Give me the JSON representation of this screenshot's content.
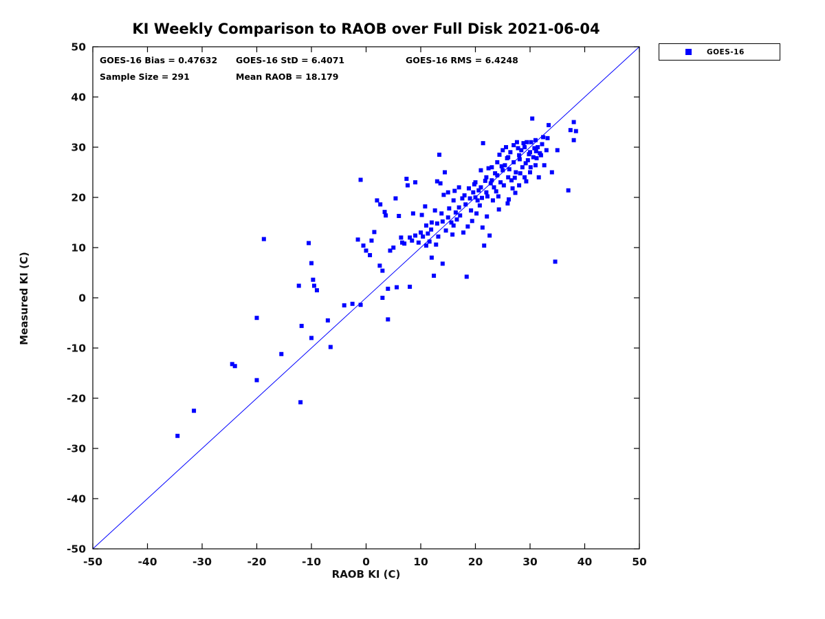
{
  "title": "KI Weekly Comparison to RAOB over Full Disk 2021-06-04",
  "legend": {
    "label": "GOES-16",
    "marker_color": "#0000ff"
  },
  "annotations": {
    "bias": "GOES-16 Bias = 0.47632",
    "std": "GOES-16 StD = 6.4071",
    "rms": "GOES-16 RMS = 6.4248",
    "sample": "Sample Size = 291",
    "mean_raob": "Mean RAOB = 18.179"
  },
  "chart_data": {
    "type": "scatter",
    "title": "KI Weekly Comparison to RAOB over Full Disk 2021-06-04",
    "xlabel": "RAOB KI (C)",
    "ylabel": "Measured KI (C)",
    "xlim": [
      -50,
      50
    ],
    "ylim": [
      -50,
      50
    ],
    "xticks": [
      -50,
      -40,
      -30,
      -20,
      -10,
      0,
      10,
      20,
      30,
      40,
      50
    ],
    "yticks": [
      -50,
      -40,
      -30,
      -20,
      -10,
      0,
      10,
      20,
      30,
      40,
      50
    ],
    "grid": false,
    "legend_position": "outside-top-right",
    "identity_line": {
      "from": [
        -50,
        -50
      ],
      "to": [
        50,
        50
      ],
      "color": "#0000ff"
    },
    "stats": {
      "bias": 0.47632,
      "std": 6.4071,
      "rms": 6.4248,
      "sample_size": 291,
      "mean_raob": 18.179
    },
    "series": [
      {
        "name": "GOES-16",
        "marker": "square",
        "color": "#0000ff",
        "points": [
          [
            -34.5,
            -27.5
          ],
          [
            -31.5,
            -22.5
          ],
          [
            -24.5,
            -13.2
          ],
          [
            -24,
            -13.6
          ],
          [
            -20,
            -16.4
          ],
          [
            -20,
            -4
          ],
          [
            -18.7,
            11.7
          ],
          [
            -15.5,
            -11.2
          ],
          [
            -12.3,
            2.4
          ],
          [
            -12,
            -20.8
          ],
          [
            -11.8,
            -5.6
          ],
          [
            -10.5,
            10.9
          ],
          [
            -10,
            6.9
          ],
          [
            -9.7,
            3.6
          ],
          [
            -9.5,
            2.4
          ],
          [
            -9,
            1.5
          ],
          [
            -10,
            -8
          ],
          [
            -7,
            -4.5
          ],
          [
            -6.5,
            -9.8
          ],
          [
            -4,
            -1.5
          ],
          [
            -2.5,
            -1.2
          ],
          [
            -1,
            -1.4
          ],
          [
            -1.5,
            11.6
          ],
          [
            -1,
            23.5
          ],
          [
            -0.5,
            10.4
          ],
          [
            0,
            9.4
          ],
          [
            0.7,
            8.5
          ],
          [
            1,
            11.4
          ],
          [
            1.5,
            13.1
          ],
          [
            2,
            19.4
          ],
          [
            2.6,
            18.6
          ],
          [
            2.5,
            6.4
          ],
          [
            3,
            5.4
          ],
          [
            3,
            0
          ],
          [
            3.4,
            17.1
          ],
          [
            3.6,
            16.4
          ],
          [
            4,
            -4.3
          ],
          [
            4,
            1.8
          ],
          [
            4.4,
            9.4
          ],
          [
            5,
            10
          ],
          [
            5.4,
            19.8
          ],
          [
            5.6,
            2.1
          ],
          [
            6,
            16.3
          ],
          [
            6.4,
            12
          ],
          [
            6.6,
            11
          ],
          [
            7,
            10.8
          ],
          [
            7.4,
            23.7
          ],
          [
            7.6,
            22.4
          ],
          [
            8,
            2.2
          ],
          [
            8,
            12
          ],
          [
            8.4,
            11.4
          ],
          [
            8.6,
            16.8
          ],
          [
            9,
            23
          ],
          [
            9,
            12.4
          ],
          [
            9.6,
            11
          ],
          [
            10,
            13
          ],
          [
            10.4,
            12.2
          ],
          [
            11,
            10.4
          ],
          [
            11,
            14.4
          ],
          [
            11.6,
            11.2
          ],
          [
            12,
            15
          ],
          [
            12,
            8
          ],
          [
            12.4,
            4.4
          ],
          [
            13,
            23.2
          ],
          [
            13,
            14.8
          ],
          [
            13.4,
            28.5
          ],
          [
            13.6,
            22.8
          ],
          [
            14,
            15.2
          ],
          [
            14,
            6.8
          ],
          [
            14.4,
            25
          ],
          [
            15,
            21
          ],
          [
            15,
            16
          ],
          [
            15.6,
            15
          ],
          [
            16,
            19.4
          ],
          [
            16,
            14.4
          ],
          [
            16.4,
            17
          ],
          [
            17,
            18
          ],
          [
            17,
            22
          ],
          [
            17.6,
            19.8
          ],
          [
            18,
            20.4
          ],
          [
            18.4,
            4.2
          ],
          [
            18.6,
            14.2
          ],
          [
            19,
            19.8
          ],
          [
            19.6,
            21
          ],
          [
            20,
            20
          ],
          [
            20,
            23
          ],
          [
            20.4,
            19.4
          ],
          [
            21,
            25.4
          ],
          [
            21,
            22
          ],
          [
            21.4,
            30.8
          ],
          [
            21.6,
            10.4
          ],
          [
            22,
            24
          ],
          [
            22,
            21
          ],
          [
            22.4,
            25.8
          ],
          [
            22.6,
            12.4
          ],
          [
            23,
            23.4
          ],
          [
            23,
            26
          ],
          [
            23.4,
            22
          ],
          [
            24,
            27
          ],
          [
            24,
            24.4
          ],
          [
            24.4,
            28.5
          ],
          [
            24.6,
            23
          ],
          [
            25,
            29.4
          ],
          [
            25,
            25.4
          ],
          [
            25.4,
            26.4
          ],
          [
            25.6,
            30
          ],
          [
            26,
            24
          ],
          [
            26,
            28
          ],
          [
            26.4,
            29
          ],
          [
            26.6,
            23.4
          ],
          [
            27,
            30.4
          ],
          [
            27,
            27
          ],
          [
            27.4,
            25
          ],
          [
            27.6,
            31
          ],
          [
            28,
            28.4
          ],
          [
            28,
            22.4
          ],
          [
            28.4,
            29.4
          ],
          [
            28.6,
            26
          ],
          [
            29,
            30
          ],
          [
            29,
            24
          ],
          [
            29.4,
            31
          ],
          [
            29.6,
            27.4
          ],
          [
            30,
            29
          ],
          [
            30,
            25
          ],
          [
            30.4,
            35.7
          ],
          [
            30.6,
            28
          ],
          [
            31,
            31.4
          ],
          [
            31,
            26.4
          ],
          [
            31.4,
            30
          ],
          [
            31.6,
            24
          ],
          [
            32,
            28.4
          ],
          [
            32.4,
            32
          ],
          [
            33,
            29.4
          ],
          [
            33.4,
            34.4
          ],
          [
            34,
            25
          ],
          [
            34.6,
            7.2
          ],
          [
            35,
            29.4
          ],
          [
            37.4,
            33.4
          ],
          [
            38,
            35
          ],
          [
            38,
            31.4
          ],
          [
            37,
            21.4
          ],
          [
            38.4,
            33.2
          ],
          [
            10.2,
            16.5
          ],
          [
            10.8,
            18.2
          ],
          [
            11.3,
            12.8
          ],
          [
            11.9,
            13.6
          ],
          [
            12.6,
            17.4
          ],
          [
            12.8,
            10.6
          ],
          [
            13.2,
            12.2
          ],
          [
            13.8,
            16.8
          ],
          [
            14.2,
            20.5
          ],
          [
            14.6,
            13.4
          ],
          [
            15.2,
            17.8
          ],
          [
            15.8,
            12.6
          ],
          [
            16.2,
            21.3
          ],
          [
            16.6,
            15.6
          ],
          [
            17.2,
            16.4
          ],
          [
            17.8,
            13.0
          ],
          [
            18.2,
            18.6
          ],
          [
            18.8,
            21.8
          ],
          [
            19.2,
            17.4
          ],
          [
            19.4,
            15.3
          ],
          [
            19.8,
            22.6
          ],
          [
            20.2,
            16.8
          ],
          [
            20.6,
            21.4
          ],
          [
            20.8,
            18.4
          ],
          [
            21.2,
            19.9
          ],
          [
            21.8,
            23.3
          ],
          [
            22.2,
            20.2
          ],
          [
            22.8,
            22.8
          ],
          [
            23.2,
            19.4
          ],
          [
            23.6,
            24.8
          ],
          [
            23.8,
            21.2
          ],
          [
            24.2,
            20.2
          ],
          [
            24.8,
            26.2
          ],
          [
            25.2,
            22.4
          ],
          [
            25.8,
            27.8
          ],
          [
            26.2,
            25.6
          ],
          [
            26.8,
            21.8
          ],
          [
            27.2,
            23.9
          ],
          [
            27.8,
            29.8
          ],
          [
            28.2,
            24.8
          ],
          [
            28.8,
            30.8
          ],
          [
            29.2,
            26.8
          ],
          [
            29.8,
            28.6
          ],
          [
            30.2,
            31.0
          ],
          [
            30.8,
            29.8
          ],
          [
            31.2,
            27.8
          ],
          [
            31.8,
            28.8
          ],
          [
            32.2,
            30.6
          ],
          [
            32.6,
            26.4
          ],
          [
            33.2,
            31.8
          ],
          [
            21.3,
            14.0
          ],
          [
            22.1,
            16.2
          ],
          [
            24.3,
            17.6
          ],
          [
            26.1,
            19.6
          ],
          [
            27.3,
            20.9
          ],
          [
            25.9,
            18.8
          ],
          [
            28.1,
            27.6
          ],
          [
            29.3,
            23.2
          ],
          [
            30.1,
            26.0
          ],
          [
            31.1,
            29.2
          ]
        ]
      }
    ]
  }
}
